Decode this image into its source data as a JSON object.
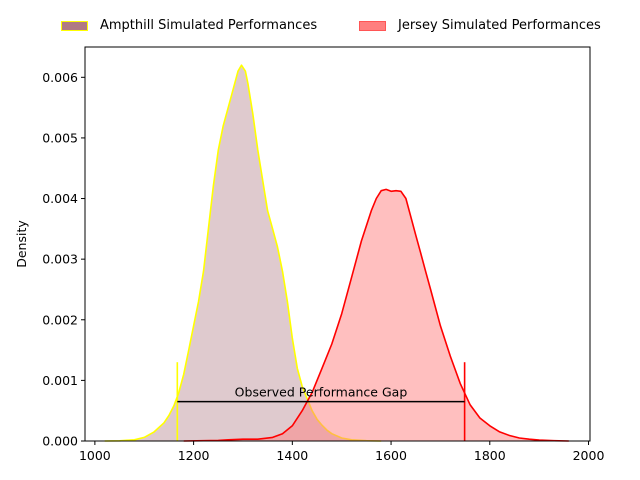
{
  "chart_data": {
    "type": "area",
    "xlabel": "",
    "ylabel": "Density",
    "xlim": [
      980,
      2003
    ],
    "ylim": [
      0,
      0.0065
    ],
    "x_ticks": [
      1000,
      1200,
      1400,
      1600,
      1800,
      2000
    ],
    "y_ticks": [
      0.0,
      0.001,
      0.002,
      0.003,
      0.004,
      0.005,
      0.006
    ],
    "x_tick_labels": [
      "1000",
      "1200",
      "1400",
      "1600",
      "1800",
      "2000"
    ],
    "y_tick_labels": [
      "0.000",
      "0.001",
      "0.002",
      "0.003",
      "0.004",
      "0.005",
      "0.006"
    ],
    "grid": false,
    "legend_position": "top-center",
    "series": [
      {
        "name": "Ampthill Simulated Performances",
        "line_color": "#ffff00",
        "fill_color": "#b07a84",
        "fill_opacity": 0.4,
        "points": [
          [
            1020,
            0
          ],
          [
            1050,
            4e-06
          ],
          [
            1080,
            2e-05
          ],
          [
            1100,
            6e-05
          ],
          [
            1120,
            0.00015
          ],
          [
            1140,
            0.0003
          ],
          [
            1150,
            0.00042
          ],
          [
            1160,
            0.00058
          ],
          [
            1170,
            0.0008
          ],
          [
            1180,
            0.0011
          ],
          [
            1190,
            0.0015
          ],
          [
            1200,
            0.0019
          ],
          [
            1210,
            0.0023
          ],
          [
            1220,
            0.0028
          ],
          [
            1230,
            0.0035
          ],
          [
            1240,
            0.0042
          ],
          [
            1250,
            0.0048
          ],
          [
            1260,
            0.0052
          ],
          [
            1270,
            0.0055
          ],
          [
            1280,
            0.0058
          ],
          [
            1290,
            0.0061
          ],
          [
            1297,
            0.0062
          ],
          [
            1305,
            0.0061
          ],
          [
            1310,
            0.0059
          ],
          [
            1320,
            0.0054
          ],
          [
            1330,
            0.0048
          ],
          [
            1340,
            0.0043
          ],
          [
            1350,
            0.0038
          ],
          [
            1360,
            0.0035
          ],
          [
            1370,
            0.0032
          ],
          [
            1380,
            0.0028
          ],
          [
            1390,
            0.0023
          ],
          [
            1400,
            0.0017
          ],
          [
            1410,
            0.0012
          ],
          [
            1420,
            0.0009
          ],
          [
            1430,
            0.0007
          ],
          [
            1440,
            0.0005
          ],
          [
            1450,
            0.00036
          ],
          [
            1460,
            0.00026
          ],
          [
            1470,
            0.00018
          ],
          [
            1480,
            0.00012
          ],
          [
            1500,
            5e-05
          ],
          [
            1520,
            2e-05
          ],
          [
            1550,
            5e-06
          ],
          [
            1580,
            0
          ]
        ]
      },
      {
        "name": "Jersey Simulated Performances",
        "line_color": "#ff0000",
        "fill_color": "#ff7f7f",
        "fill_opacity": 0.5,
        "points": [
          [
            1180,
            0
          ],
          [
            1220,
            5e-06
          ],
          [
            1250,
            1e-05
          ],
          [
            1270,
            2e-05
          ],
          [
            1300,
            3e-05
          ],
          [
            1330,
            3e-05
          ],
          [
            1360,
            6e-05
          ],
          [
            1380,
            0.00012
          ],
          [
            1400,
            0.00025
          ],
          [
            1420,
            0.0005
          ],
          [
            1440,
            0.0008
          ],
          [
            1460,
            0.0012
          ],
          [
            1480,
            0.0016
          ],
          [
            1500,
            0.0021
          ],
          [
            1520,
            0.0027
          ],
          [
            1540,
            0.0033
          ],
          [
            1560,
            0.0038
          ],
          [
            1570,
            0.004
          ],
          [
            1580,
            0.00413
          ],
          [
            1590,
            0.00415
          ],
          [
            1600,
            0.00412
          ],
          [
            1610,
            0.00413
          ],
          [
            1620,
            0.00412
          ],
          [
            1630,
            0.004
          ],
          [
            1640,
            0.0037
          ],
          [
            1650,
            0.0034
          ],
          [
            1660,
            0.0031
          ],
          [
            1670,
            0.0028
          ],
          [
            1680,
            0.0025
          ],
          [
            1700,
            0.0019
          ],
          [
            1720,
            0.0014
          ],
          [
            1740,
            0.00095
          ],
          [
            1760,
            0.0006
          ],
          [
            1780,
            0.00038
          ],
          [
            1800,
            0.00025
          ],
          [
            1820,
            0.00015
          ],
          [
            1840,
            9e-05
          ],
          [
            1860,
            5e-05
          ],
          [
            1880,
            3e-05
          ],
          [
            1900,
            1.5e-05
          ],
          [
            1930,
            5e-06
          ],
          [
            1960,
            0
          ]
        ]
      }
    ],
    "annotation": {
      "text": "Observed Performance Gap",
      "y": 0.00065,
      "x_start": 1167,
      "x_end": 1749,
      "marker_top": 0.0013
    }
  }
}
